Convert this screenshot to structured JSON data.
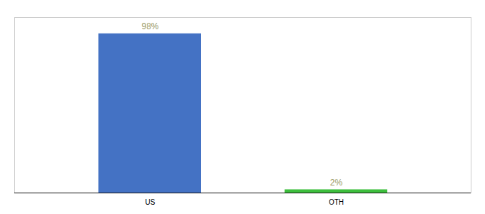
{
  "chart_data": {
    "type": "bar",
    "categories": [
      "US",
      "OTH"
    ],
    "values": [
      98,
      2
    ],
    "value_labels": [
      "98%",
      "2%"
    ],
    "colors": [
      "#4472C4",
      "#3DBE3D"
    ],
    "data_labels": true,
    "ylim": [
      0,
      108
    ],
    "grid": false,
    "tick_labels": "x"
  }
}
